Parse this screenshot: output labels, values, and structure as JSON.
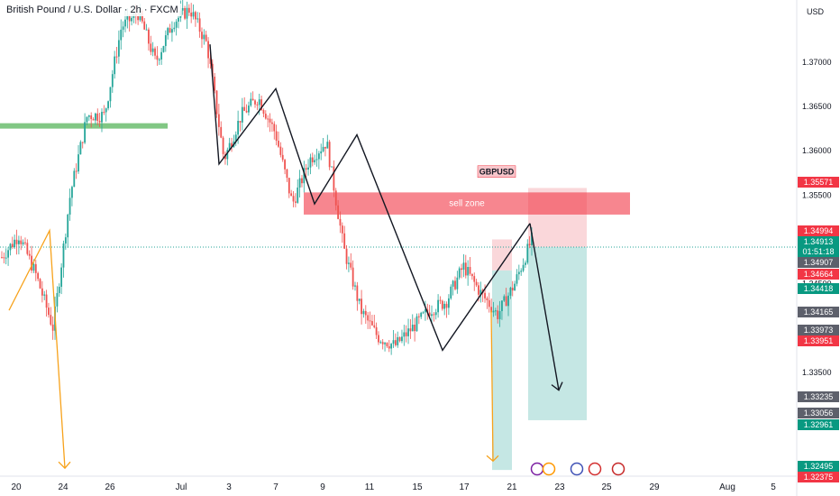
{
  "header": {
    "symbol_title": "British Pound / U.S. Dollar · 2h · FXCM",
    "currency": "USD"
  },
  "annotations": {
    "symbol_tag": "GBPUSD",
    "zone_label": "sell zone"
  },
  "colors": {
    "up": "#26a69a",
    "down": "#ef5350",
    "pattern_line": "#131722",
    "arrow_orange": "#f7a21b",
    "support_green": "#4caf50",
    "zone_red": "#f23645",
    "target_green": "#b2dfdb",
    "stop_red": "#f8c6cb"
  },
  "chart_data": {
    "type": "candlestick",
    "title": "British Pound / U.S. Dollar · 2h · FXCM",
    "ylabel": "USD",
    "ylim": [
      1.3233,
      1.377
    ],
    "y_ticks": [
      1.37,
      1.365,
      1.36,
      1.355,
      1.35,
      1.345,
      1.34,
      1.335
    ],
    "x_ticks": [
      "20",
      "24",
      "26",
      "Jul",
      "3",
      "7",
      "9",
      "11",
      "15",
      "17",
      "21",
      "23",
      "25",
      "29",
      "Aug",
      "5"
    ],
    "price_labels": [
      {
        "text": "1.35571",
        "kind": "red"
      },
      {
        "text": "1.34994",
        "kind": "red"
      },
      {
        "text": "1.34913",
        "kind": "green"
      },
      {
        "text": "01:51:18",
        "kind": "green_sub"
      },
      {
        "text": "1.34907",
        "kind": "grey"
      },
      {
        "text": "1.34664",
        "kind": "red"
      },
      {
        "text": "1.34418",
        "kind": "green"
      },
      {
        "text": "1.34165",
        "kind": "grey"
      },
      {
        "text": "1.33973",
        "kind": "grey"
      },
      {
        "text": "1.33951",
        "kind": "red"
      },
      {
        "text": "1.33235",
        "kind": "grey"
      },
      {
        "text": "1.33056",
        "kind": "grey"
      },
      {
        "text": "1.32961",
        "kind": "green"
      },
      {
        "text": "1.32495",
        "kind": "green"
      },
      {
        "text": "1.32375",
        "kind": "red"
      }
    ],
    "current_price": 1.34913,
    "sell_zone": {
      "low": 1.3528,
      "high": 1.3553
    },
    "support_level": 1.3628,
    "stop_level": 1.3558,
    "entry_level": 1.34913,
    "target_level": 1.32961,
    "zigzag_points": [
      1.372,
      1.3585,
      1.367,
      1.354,
      1.3618,
      1.3375,
      1.3518,
      1.333
    ],
    "price_path": [
      1.348,
      1.3505,
      1.346,
      1.34,
      1.355,
      1.364,
      1.364,
      1.374,
      1.3755,
      1.37,
      1.3745,
      1.376,
      1.372,
      1.359,
      1.364,
      1.366,
      1.362,
      1.354,
      1.359,
      1.361,
      1.349,
      1.342,
      1.339,
      1.338,
      1.34,
      1.342,
      1.343,
      1.347,
      1.344,
      1.3415,
      1.345,
      1.35
    ]
  }
}
